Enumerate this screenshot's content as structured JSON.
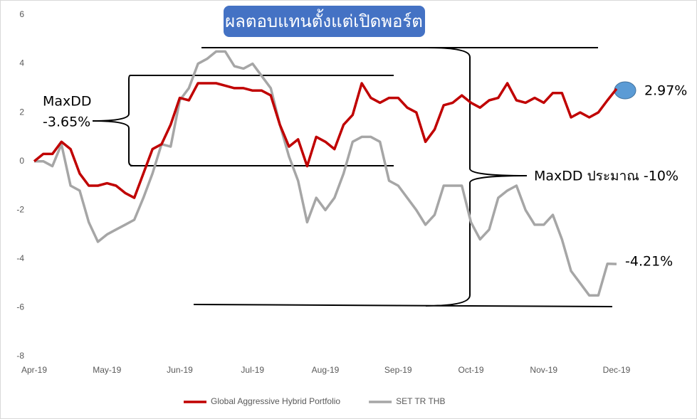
{
  "chart_data": {
    "type": "line",
    "title": "ผลตอบแทนตั้งแต่เปิดพอร์ต",
    "x": [
      0,
      0.125,
      0.25,
      0.375,
      0.5,
      0.625,
      0.75,
      0.875,
      1,
      1.125,
      1.25,
      1.375,
      1.5,
      1.625,
      1.75,
      1.875,
      2,
      2.125,
      2.25,
      2.375,
      2.5,
      2.625,
      2.75,
      2.875,
      3,
      3.125,
      3.25,
      3.375,
      3.5,
      3.625,
      3.75,
      3.875,
      4,
      4.125,
      4.25,
      4.375,
      4.5,
      4.625,
      4.75,
      4.875,
      5,
      5.125,
      5.25,
      5.375,
      5.5,
      5.625,
      5.75,
      5.875,
      6,
      6.125,
      6.25,
      6.375,
      6.5,
      6.625,
      6.75,
      6.875,
      7,
      7.125,
      7.25,
      7.375,
      7.5,
      7.625,
      7.75,
      7.875,
      8
    ],
    "series": [
      {
        "name": "Global Aggressive Hybrid Portfolio",
        "color": "#c00000",
        "values": [
          0,
          0.3,
          0.3,
          0.8,
          0.5,
          -0.5,
          -1.0,
          -1.0,
          -0.9,
          -1.0,
          -1.3,
          -1.5,
          -0.5,
          0.5,
          0.7,
          1.5,
          2.6,
          2.5,
          3.2,
          3.2,
          3.2,
          3.1,
          3.0,
          3.0,
          2.9,
          2.9,
          2.7,
          1.5,
          0.6,
          0.9,
          -0.2,
          1.0,
          0.8,
          0.5,
          1.5,
          1.9,
          3.2,
          2.6,
          2.4,
          2.6,
          2.6,
          2.2,
          2.0,
          0.8,
          1.3,
          2.3,
          2.4,
          2.7,
          2.4,
          2.2,
          2.5,
          2.6,
          3.2,
          2.5,
          2.4,
          2.6,
          2.4,
          2.8,
          2.8,
          1.8,
          2.0,
          1.8,
          2.0,
          2.5,
          2.97
        ]
      },
      {
        "name": "SET TR THB",
        "color": "#a6a6a6",
        "values": [
          0,
          0,
          -0.2,
          0.7,
          -1.0,
          -1.2,
          -2.5,
          -3.3,
          -3.0,
          -2.8,
          -2.6,
          -2.4,
          -1.5,
          -0.5,
          0.7,
          0.6,
          2.5,
          3.0,
          4.0,
          4.2,
          4.5,
          4.5,
          3.9,
          3.8,
          4.0,
          3.5,
          3.0,
          1.5,
          0.2,
          -0.8,
          -2.5,
          -1.5,
          -2.0,
          -1.5,
          -0.5,
          0.8,
          1.0,
          1.0,
          0.8,
          -0.8,
          -1.0,
          -1.5,
          -2.0,
          -2.6,
          -2.2,
          -1.0,
          -1.0,
          -1.0,
          -2.5,
          -3.2,
          -2.8,
          -1.5,
          -1.2,
          -1.0,
          -2.0,
          -2.6,
          -2.6,
          -2.2,
          -3.2,
          -4.5,
          -5.0,
          -5.5,
          -5.5,
          -4.2,
          -4.21
        ]
      }
    ],
    "xlim": [
      0,
      8
    ],
    "xticks": [
      {
        "value": 0,
        "label": "Apr-19"
      },
      {
        "value": 1,
        "label": "May-19"
      },
      {
        "value": 2,
        "label": "Jun-19"
      },
      {
        "value": 3,
        "label": "Jul-19"
      },
      {
        "value": 4,
        "label": "Aug-19"
      },
      {
        "value": 5,
        "label": "Sep-19"
      },
      {
        "value": 6,
        "label": "Oct-19"
      },
      {
        "value": 7,
        "label": "Nov-19"
      },
      {
        "value": 8,
        "label": "Dec-19"
      }
    ],
    "ylim": [
      -8,
      6
    ],
    "yticks": [
      -8,
      -6,
      -4,
      -2,
      0,
      2,
      4,
      6
    ],
    "grid": false,
    "legend": "bottom",
    "annotations": [
      "MaxDD",
      "-3.65%",
      "MaxDD ประมาณ -10%",
      "2.97%",
      "-4.21%"
    ]
  }
}
